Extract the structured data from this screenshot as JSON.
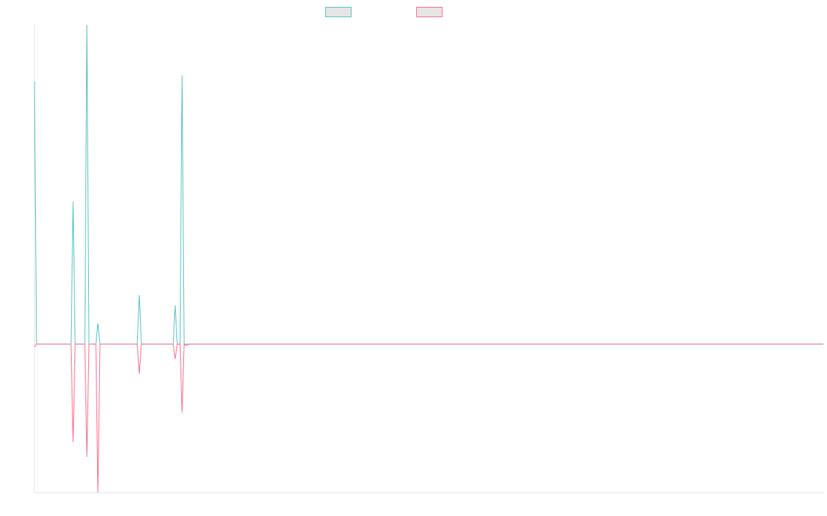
{
  "chart_data": {
    "type": "line",
    "title": "",
    "xlabel": "",
    "ylabel": "",
    "grid": false,
    "legend_placement": "top-center",
    "ylim": [
      -1.0,
      2.15
    ],
    "x": [
      0,
      1,
      2,
      3,
      4,
      5,
      6,
      7,
      8,
      9,
      10,
      11,
      12,
      13,
      14,
      15,
      16,
      17,
      18,
      19,
      20,
      21,
      22,
      23,
      24,
      25,
      26,
      27,
      28,
      29,
      30,
      31,
      32,
      33,
      34,
      35,
      36,
      37,
      38,
      39,
      40,
      41,
      42,
      43,
      44,
      45,
      46,
      47,
      48,
      49,
      50,
      51,
      52,
      53,
      54,
      55,
      56,
      57,
      58,
      59,
      60,
      61,
      62,
      63,
      64,
      65,
      66,
      67,
      68,
      69,
      70,
      71,
      72,
      73,
      74,
      75,
      76,
      77,
      78,
      79,
      80,
      81,
      82,
      83,
      84,
      85,
      86,
      87,
      88,
      89,
      90,
      91,
      92,
      93,
      94,
      95,
      96,
      97,
      98,
      99,
      100,
      101,
      102,
      103,
      104,
      105,
      106,
      107,
      108,
      109,
      110,
      111,
      112,
      113,
      114,
      115,
      116,
      117,
      118,
      119,
      120,
      121,
      122,
      123,
      124,
      125,
      126,
      127,
      128,
      129,
      130,
      131,
      132,
      133,
      134,
      135,
      136,
      137,
      138,
      139,
      140,
      141,
      142,
      143,
      144,
      145,
      146,
      147,
      148,
      149,
      150,
      151,
      152,
      153,
      154,
      155,
      156,
      157,
      158,
      159,
      160,
      161,
      162,
      163,
      164,
      165,
      166,
      167,
      168,
      169,
      170,
      171,
      172,
      173,
      174,
      175,
      176,
      177,
      178,
      179,
      180,
      181,
      182,
      183,
      184,
      185,
      186,
      187,
      188,
      189,
      190,
      191,
      192,
      193,
      194,
      195,
      196,
      197,
      198,
      199,
      200,
      201,
      202,
      203,
      204,
      205,
      206,
      207,
      208,
      209,
      210,
      211,
      212,
      213,
      214,
      215,
      216,
      217,
      218,
      219,
      220,
      221,
      222,
      223,
      224,
      225,
      226,
      227,
      228,
      229,
      230,
      231,
      232,
      233,
      234,
      235,
      236,
      237,
      238,
      239,
      240,
      241,
      242,
      243,
      244,
      245,
      246,
      247,
      248,
      249,
      250,
      251,
      252,
      253,
      254,
      255,
      256,
      257,
      258,
      259,
      260,
      261,
      262,
      263,
      264,
      265,
      266,
      267,
      268,
      269,
      270,
      271,
      272,
      273,
      274,
      275,
      276,
      277,
      278,
      279,
      280,
      281,
      282,
      283,
      284,
      285,
      286,
      287,
      288,
      289,
      290,
      291,
      292,
      293,
      294,
      295,
      296,
      297,
      298,
      299,
      300,
      301,
      302,
      303,
      304,
      305,
      306,
      307,
      308,
      309,
      310,
      311,
      312,
      313,
      314,
      315,
      316,
      317,
      318,
      319,
      320,
      321,
      322,
      323,
      324,
      325,
      326,
      327,
      328,
      329,
      330,
      331,
      332,
      333,
      334,
      335,
      336,
      337,
      338,
      339,
      340,
      341,
      342,
      343,
      344,
      345,
      346,
      347,
      348,
      349,
      350,
      351,
      352,
      353,
      354,
      355,
      356,
      357,
      358,
      359,
      360,
      361,
      362,
      363,
      364,
      365,
      366,
      367,
      368,
      369,
      370,
      371,
      372,
      373,
      374,
      375,
      376,
      377,
      378,
      379,
      380,
      381,
      382,
      383,
      384,
      385,
      386,
      387,
      388,
      389,
      390,
      391,
      392,
      393,
      394,
      395,
      396,
      397,
      398,
      399,
      400,
      401,
      402,
      403,
      404,
      405,
      406,
      407,
      408,
      409,
      410,
      411,
      412,
      413,
      414,
      415,
      416,
      417,
      418,
      419,
      420,
      421,
      422,
      423,
      424,
      425,
      426,
      427,
      428,
      429,
      430,
      431,
      432,
      433,
      434,
      435,
      436,
      437,
      438,
      439,
      440,
      441,
      442,
      443,
      444,
      445,
      446,
      447,
      448,
      449,
      450,
      451,
      452,
      453,
      454,
      455,
      456,
      457,
      458,
      459,
      460,
      461,
      462,
      463,
      464,
      465,
      466,
      467,
      468,
      469,
      470,
      471,
      472,
      473,
      474,
      475,
      476,
      477,
      478,
      479,
      480,
      481,
      482,
      483,
      484,
      485,
      486,
      487,
      488,
      489,
      490,
      491,
      492,
      493,
      494,
      495,
      496,
      497,
      498,
      499,
      500,
      501,
      502,
      503,
      504,
      505,
      506,
      507,
      508,
      509,
      510,
      511,
      512,
      513,
      514,
      515,
      516,
      517,
      518,
      519,
      520,
      521,
      522,
      523,
      524,
      525,
      526,
      527,
      528,
      529,
      530,
      531,
      532,
      533,
      534,
      535,
      536,
      537,
      538,
      539,
      540,
      541,
      542,
      543,
      544,
      545,
      546,
      547,
      548,
      549,
      550,
      551,
      552,
      553,
      554,
      555,
      556,
      557,
      558,
      559,
      560,
      561,
      562,
      563,
      564,
      565,
      566,
      567,
      568,
      569,
      570,
      571,
      572,
      573,
      574,
      575,
      576,
      577,
      578,
      579,
      580,
      581,
      582,
      583,
      584,
      585,
      586,
      587,
      588,
      589,
      590,
      591,
      592,
      593,
      594,
      595,
      596,
      597,
      598,
      599,
      600,
      601,
      602,
      603,
      604,
      605,
      606,
      607,
      608,
      609,
      610,
      611,
      612,
      613,
      614,
      615,
      616,
      617,
      618,
      619,
      620,
      621,
      622,
      623,
      624,
      625,
      626,
      627,
      628,
      629,
      630,
      631,
      632,
      633,
      634,
      635,
      636,
      637,
      638,
      639,
      640,
      641,
      642,
      643,
      644,
      645,
      646,
      647,
      648,
      649,
      650,
      651,
      652,
      653,
      654,
      655,
      656,
      657,
      658,
      659,
      660,
      661,
      662,
      663,
      664,
      665,
      666,
      667,
      668,
      669,
      670,
      671,
      672,
      673,
      674,
      675,
      676,
      677,
      678,
      679,
      680,
      681,
      682,
      683,
      684,
      685,
      686,
      687,
      688,
      689,
      690,
      691,
      692,
      693,
      694,
      695,
      696,
      697,
      698,
      699,
      700,
      701,
      702,
      703,
      704,
      705,
      706,
      707,
      708,
      709,
      710,
      711,
      712,
      713,
      714,
      715,
      716,
      717,
      718,
      719,
      720,
      721,
      722,
      723,
      724,
      725,
      726,
      727,
      728,
      729,
      730,
      731,
      732,
      733,
      734,
      735,
      736,
      737,
      738,
      739,
      740,
      741,
      742,
      743,
      744,
      745,
      746,
      747,
      748,
      749,
      750,
      751,
      752,
      753,
      754,
      755,
      756,
      757,
      758,
      759,
      760,
      761,
      762,
      763,
      764,
      765,
      766,
      767,
      768,
      769,
      770,
      771,
      772,
      773,
      774,
      775,
      776,
      777,
      778,
      779,
      780,
      781,
      782,
      783,
      784,
      785,
      786,
      787,
      788,
      789,
      790,
      791,
      792,
      793,
      794,
      795,
      796,
      797,
      798,
      799,
      800,
      801,
      802,
      803,
      804,
      805,
      806,
      807,
      808,
      809,
      810,
      811,
      812,
      813,
      814,
      815,
      816,
      817,
      818,
      819,
      820,
      821,
      822,
      823,
      824,
      825,
      826,
      827,
      828,
      829,
      830,
      831,
      832,
      833,
      834,
      835,
      836,
      837,
      838,
      839,
      840,
      841,
      842,
      843,
      844,
      845,
      846,
      847,
      848,
      849,
      850,
      851,
      852,
      853,
      854,
      855,
      856,
      857,
      858,
      859,
      860,
      861,
      862,
      863,
      864,
      865,
      866,
      867,
      868,
      869,
      870,
      871,
      872,
      873,
      874,
      875,
      876,
      877,
      878,
      879,
      880,
      881,
      882,
      883,
      884,
      885,
      886,
      887,
      888,
      889,
      890,
      891,
      892,
      893,
      894,
      895,
      896,
      897,
      898,
      899,
      900,
      901,
      902,
      903,
      904,
      905,
      906,
      907,
      908,
      909,
      910,
      911,
      912,
      913,
      914,
      915,
      916,
      917,
      918,
      919,
      920,
      921,
      922,
      923,
      924,
      925,
      926,
      927,
      928,
      929,
      930,
      931,
      932,
      933,
      934,
      935,
      936,
      937,
      938,
      939,
      940,
      941,
      942,
      943,
      944,
      945,
      946,
      947,
      948,
      949,
      950,
      951,
      952,
      953,
      954,
      955,
      956,
      957,
      958,
      959,
      960,
      961,
      962,
      963,
      964,
      965,
      966,
      967,
      968,
      969,
      970,
      971,
      972,
      973,
      974,
      975,
      976,
      977,
      978,
      979,
      980,
      981,
      982,
      983,
      984,
      985,
      986,
      987,
      988,
      989,
      990,
      991,
      992,
      993,
      994,
      995,
      996,
      997,
      998,
      999,
      1000,
      1001,
      1002,
      1003,
      1004,
      1005,
      1006,
      1007,
      1008,
      1009,
      1010,
      1011,
      1012,
      1013,
      1014,
      1015,
      1016,
      1017,
      1018,
      1019,
      1020,
      1021,
      1022,
      1023,
      1024,
      1025,
      1026,
      1027,
      1028,
      1029,
      1030,
      1031,
      1032,
      1033,
      1034,
      1035,
      1036,
      1037,
      1038,
      1039,
      1040,
      1041,
      1042,
      1043,
      1044,
      1045,
      1046,
      1047,
      1048,
      1049,
      1050,
      1051,
      1052,
      1053,
      1054,
      1055,
      1056,
      1057,
      1058,
      1059,
      1060,
      1061,
      1062,
      1063,
      1064,
      1065,
      1066,
      1067,
      1068,
      1069,
      1070,
      1071,
      1072,
      1073,
      1074,
      1075,
      1076,
      1077,
      1078,
      1079,
      1080,
      1081,
      1082,
      1083,
      1084,
      1085,
      1086,
      1087,
      1088,
      1089,
      1090,
      1091,
      1092,
      1093,
      1094,
      1095,
      1096,
      1097,
      1098,
      1099,
      1100,
      1101,
      1102,
      1103,
      1104,
      1105,
      1106,
      1107,
      1108,
      1109,
      1110,
      1111,
      1112,
      1113,
      1114,
      1115,
      1116,
      1117,
      1118,
      1119,
      1120,
      1121,
      1122,
      1123,
      1124,
      1125,
      1126,
      1127,
      1128,
      1129,
      1130,
      1131,
      1132,
      1133,
      1134,
      1135,
      1136,
      1137,
      1138,
      1139,
      1140,
      1141,
      1142,
      1143,
      1144
    ],
    "series_sparse": true,
    "series": [
      {
        "color": "#4bc0c0",
        "baseline": 0,
        "points": [
          [
            0,
            1.77
          ],
          [
            3,
            0.0
          ],
          [
            53,
            0.0
          ],
          [
            56,
            0.96
          ],
          [
            59,
            0.0
          ],
          [
            73,
            0.0
          ],
          [
            76,
            2.15
          ],
          [
            79,
            0.0
          ],
          [
            89,
            0.0
          ],
          [
            92,
            0.14
          ],
          [
            95,
            0.0
          ],
          [
            149,
            0.0
          ],
          [
            152,
            0.33
          ],
          [
            155,
            0.0
          ],
          [
            201,
            0.0
          ],
          [
            204,
            0.26
          ],
          [
            207,
            0.0
          ],
          [
            211,
            0.0
          ],
          [
            214,
            1.81
          ],
          [
            217,
            0.0
          ],
          [
            1144,
            0.0
          ]
        ]
      },
      {
        "color": "#ff6384",
        "baseline": 0,
        "points": [
          [
            0,
            -0.02
          ],
          [
            3,
            0.0
          ],
          [
            53,
            0.0
          ],
          [
            56,
            -0.66
          ],
          [
            59,
            0.0
          ],
          [
            73,
            0.0
          ],
          [
            76,
            -0.76
          ],
          [
            79,
            0.0
          ],
          [
            89,
            0.0
          ],
          [
            92,
            -1.0
          ],
          [
            95,
            0.0
          ],
          [
            149,
            0.0
          ],
          [
            152,
            -0.2
          ],
          [
            155,
            0.0
          ],
          [
            201,
            0.0
          ],
          [
            204,
            -0.1
          ],
          [
            207,
            0.0
          ],
          [
            211,
            0.0
          ],
          [
            214,
            -0.46
          ],
          [
            217,
            0.0
          ],
          [
            220,
            -0.01
          ],
          [
            224,
            0.0
          ],
          [
            1144,
            0.0
          ]
        ]
      }
    ],
    "legend": [
      {
        "color_fill": "#e5e5e5",
        "color_border": "#4bc0c0",
        "label": ""
      },
      {
        "color_fill": "#e5e5e5",
        "color_border": "#ff6384",
        "label": ""
      }
    ]
  }
}
